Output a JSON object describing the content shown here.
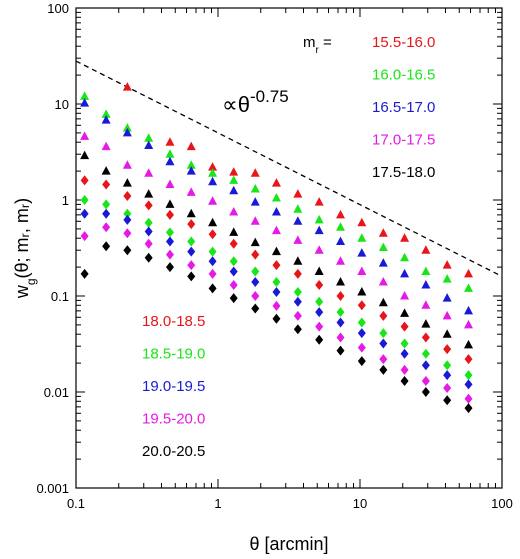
{
  "chart_data": {
    "type": "scatter",
    "xscale": "log",
    "yscale": "log",
    "xlim": [
      0.1,
      100
    ],
    "ylim": [
      0.001,
      100
    ],
    "xlabel": "θ [arcmin]",
    "ylabel": "w_g(θ; m_r, m_r)",
    "x_ticks": [
      "0.1",
      "1",
      "10",
      "100"
    ],
    "y_ticks": [
      "0.001",
      "0.01",
      "0.1",
      "1",
      "10",
      "100"
    ],
    "grid": false,
    "legend_title": "m_r =",
    "legend_title_sub": "r",
    "annotation": {
      "text": "∝θ",
      "superscript": "-0.75",
      "line": {
        "style": "dashed",
        "color": "#000000",
        "x": [
          0.1,
          100
        ],
        "y": [
          28,
          0.16
        ]
      }
    },
    "theta": [
      0.115,
      0.163,
      0.23,
      0.325,
      0.459,
      0.648,
      0.916,
      1.29,
      1.83,
      2.58,
      3.65,
      5.16,
      7.29,
      10.3,
      14.6,
      20.6,
      29.1,
      41.1,
      58.1
    ],
    "series": [
      {
        "name": "15.5-16.0",
        "color": "#e8161a",
        "marker": "triangle",
        "values": [
          null,
          null,
          15.0,
          null,
          4.0,
          3.6,
          2.2,
          1.95,
          1.9,
          1.5,
          1.15,
          0.95,
          0.7,
          0.58,
          0.45,
          0.4,
          0.3,
          0.21,
          0.17
        ]
      },
      {
        "name": "16.0-16.5",
        "color": "#19e619",
        "marker": "triangle",
        "values": [
          12.0,
          7.8,
          5.6,
          4.4,
          3.0,
          2.3,
          1.9,
          1.6,
          1.3,
          1.05,
          0.8,
          0.62,
          0.52,
          0.4,
          0.32,
          0.25,
          0.18,
          0.15,
          0.12
        ]
      },
      {
        "name": "16.5-17.0",
        "color": "#1a1ad6",
        "marker": "triangle",
        "values": [
          10.2,
          6.8,
          5.0,
          3.7,
          2.5,
          2.0,
          1.55,
          1.25,
          0.95,
          0.75,
          0.6,
          0.48,
          0.37,
          0.28,
          0.22,
          0.17,
          0.13,
          0.095,
          0.07
        ]
      },
      {
        "name": "17.0-17.5",
        "color": "#e61ae6",
        "marker": "triangle",
        "values": [
          4.6,
          3.6,
          2.3,
          1.9,
          1.45,
          1.2,
          0.97,
          0.75,
          0.6,
          0.48,
          0.38,
          0.3,
          0.23,
          0.18,
          0.14,
          0.1,
          0.08,
          0.062,
          0.05
        ]
      },
      {
        "name": "17.5-18.0",
        "color": "#000000",
        "marker": "triangle",
        "values": [
          2.9,
          2.0,
          1.5,
          1.15,
          0.9,
          0.72,
          0.58,
          0.46,
          0.36,
          0.29,
          0.23,
          0.18,
          0.14,
          0.11,
          0.085,
          0.066,
          0.051,
          0.04,
          0.031
        ]
      },
      {
        "name": "18.0-18.5",
        "color": "#e8161a",
        "marker": "diamond",
        "values": [
          1.6,
          1.45,
          1.1,
          0.88,
          0.7,
          0.56,
          0.44,
          0.35,
          0.27,
          0.21,
          0.17,
          0.13,
          0.1,
          0.08,
          0.062,
          0.048,
          0.037,
          0.028,
          0.022
        ]
      },
      {
        "name": "18.5-19.0",
        "color": "#19e619",
        "marker": "diamond",
        "values": [
          1.0,
          0.9,
          0.72,
          0.58,
          0.46,
          0.37,
          0.29,
          0.23,
          0.18,
          0.14,
          0.11,
          0.087,
          0.068,
          0.053,
          0.041,
          0.032,
          0.025,
          0.019,
          0.015
        ]
      },
      {
        "name": "19.0-19.5",
        "color": "#1a1ad6",
        "marker": "diamond",
        "values": [
          0.72,
          0.72,
          0.62,
          0.47,
          0.37,
          0.29,
          0.23,
          0.18,
          0.14,
          0.11,
          0.087,
          0.068,
          0.053,
          0.041,
          0.032,
          0.025,
          0.019,
          0.015,
          0.012
        ]
      },
      {
        "name": "19.5-20.0",
        "color": "#e61ae6",
        "marker": "diamond",
        "values": [
          0.42,
          0.52,
          0.45,
          0.35,
          0.27,
          0.21,
          0.17,
          0.13,
          0.1,
          0.079,
          0.062,
          0.048,
          0.037,
          0.029,
          0.022,
          0.017,
          0.013,
          0.011,
          0.0085
        ]
      },
      {
        "name": "20.0-20.5",
        "color": "#000000",
        "marker": "diamond",
        "values": [
          0.17,
          0.33,
          0.3,
          0.25,
          0.2,
          0.16,
          0.12,
          0.095,
          0.074,
          0.058,
          0.045,
          0.035,
          0.027,
          0.021,
          0.017,
          0.013,
          0.01,
          0.0082,
          0.0068
        ]
      }
    ]
  }
}
